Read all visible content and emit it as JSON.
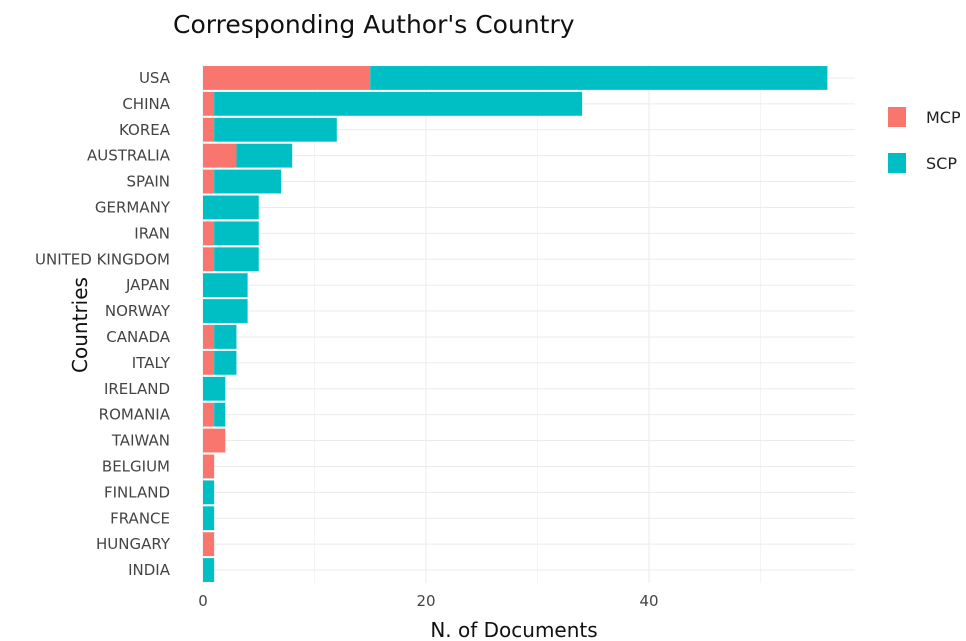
{
  "chart_data": {
    "type": "bar",
    "orientation": "horizontal",
    "stacked": true,
    "title": "Corresponding Author's Country",
    "xlabel": "N. of Documents",
    "ylabel": "Countries",
    "xlim": [
      0,
      58
    ],
    "xticks": [
      0,
      20,
      40
    ],
    "grid": true,
    "legend_position": "right",
    "categories": [
      "USA",
      "CHINA",
      "KOREA",
      "AUSTRALIA",
      "SPAIN",
      "GERMANY",
      "IRAN",
      "UNITED KINGDOM",
      "JAPAN",
      "NORWAY",
      "CANADA",
      "ITALY",
      "IRELAND",
      "ROMANIA",
      "TAIWAN",
      "BELGIUM",
      "FINLAND",
      "FRANCE",
      "HUNGARY",
      "INDIA"
    ],
    "series": [
      {
        "name": "MCP",
        "color": "#f8766d",
        "values": [
          15,
          1,
          1,
          3,
          1,
          0,
          1,
          1,
          0,
          0,
          1,
          1,
          0,
          1,
          2,
          1,
          0,
          0,
          1,
          0
        ]
      },
      {
        "name": "SCP",
        "color": "#00bfc4",
        "values": [
          41,
          33,
          11,
          5,
          6,
          5,
          4,
          4,
          4,
          4,
          2,
          2,
          2,
          1,
          0,
          0,
          1,
          1,
          0,
          1
        ]
      }
    ]
  }
}
